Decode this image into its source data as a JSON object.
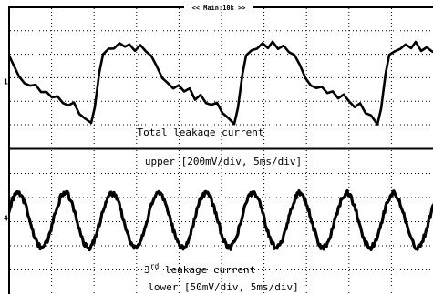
{
  "header": {
    "title": "<< Main:10k >>"
  },
  "upper": {
    "label": "Total leakage current",
    "caption": "upper [200mV/div, 5ms/div]"
  },
  "lower": {
    "label_number": "3",
    "label_suffix": "rd",
    "label_rest": " leakage current",
    "caption": "lower [50mV/div, 5ms/div]"
  }
}
